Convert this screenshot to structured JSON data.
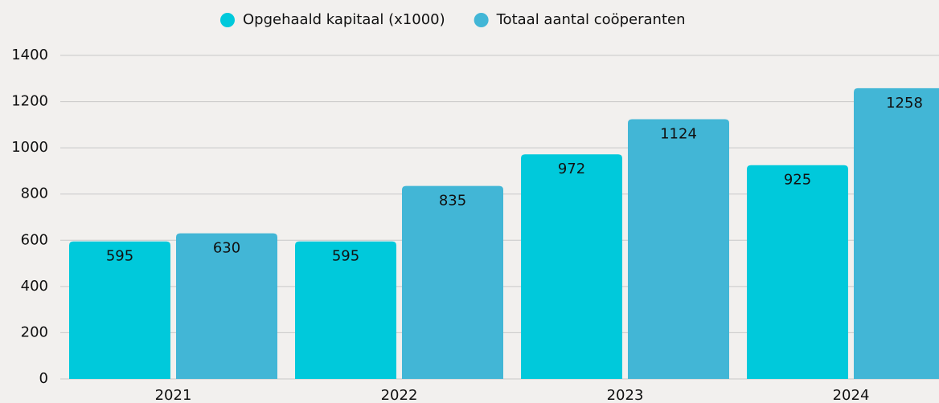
{
  "chart_data": {
    "type": "bar",
    "categories": [
      "2021",
      "2022",
      "2023",
      "2024"
    ],
    "series": [
      {
        "name": "Opgehaald kapitaal (x1000)",
        "color": "#00c9db",
        "values": [
          595,
          595,
          972,
          925
        ]
      },
      {
        "name": "Totaal aantal coöperanten",
        "color": "#42b6d6",
        "values": [
          630,
          835,
          1124,
          1258
        ]
      }
    ],
    "ylim": [
      0,
      1400
    ],
    "yticks": [
      0,
      200,
      400,
      600,
      800,
      1000,
      1200,
      1400
    ],
    "grid": true,
    "legend": "top"
  }
}
